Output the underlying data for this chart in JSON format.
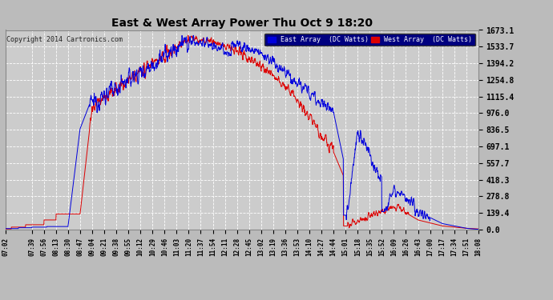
{
  "title": "East & West Array Power Thu Oct 9 18:20",
  "copyright": "Copyright 2014 Cartronics.com",
  "legend_east": "East Array  (DC Watts)",
  "legend_west": "West Array  (DC Watts)",
  "east_color": "#0000dd",
  "west_color": "#dd0000",
  "bg_color": "#bbbbbb",
  "plot_bg_color": "#cccccc",
  "grid_color": "#ffffff",
  "yticks": [
    0.0,
    139.4,
    278.8,
    418.3,
    557.7,
    697.1,
    836.5,
    976.0,
    1115.4,
    1254.8,
    1394.2,
    1533.7,
    1673.1
  ],
  "ymax": 1673.1,
  "ymin": 0.0,
  "xtick_labels": [
    "07:02",
    "07:39",
    "07:56",
    "08:13",
    "08:30",
    "08:47",
    "09:04",
    "09:21",
    "09:38",
    "09:55",
    "10:12",
    "10:29",
    "10:46",
    "11:03",
    "11:20",
    "11:37",
    "11:54",
    "12:11",
    "12:28",
    "12:45",
    "13:02",
    "13:19",
    "13:36",
    "13:53",
    "14:10",
    "14:27",
    "14:44",
    "15:01",
    "15:18",
    "15:35",
    "15:52",
    "16:09",
    "16:26",
    "16:43",
    "17:00",
    "17:17",
    "17:34",
    "17:51",
    "18:08"
  ]
}
